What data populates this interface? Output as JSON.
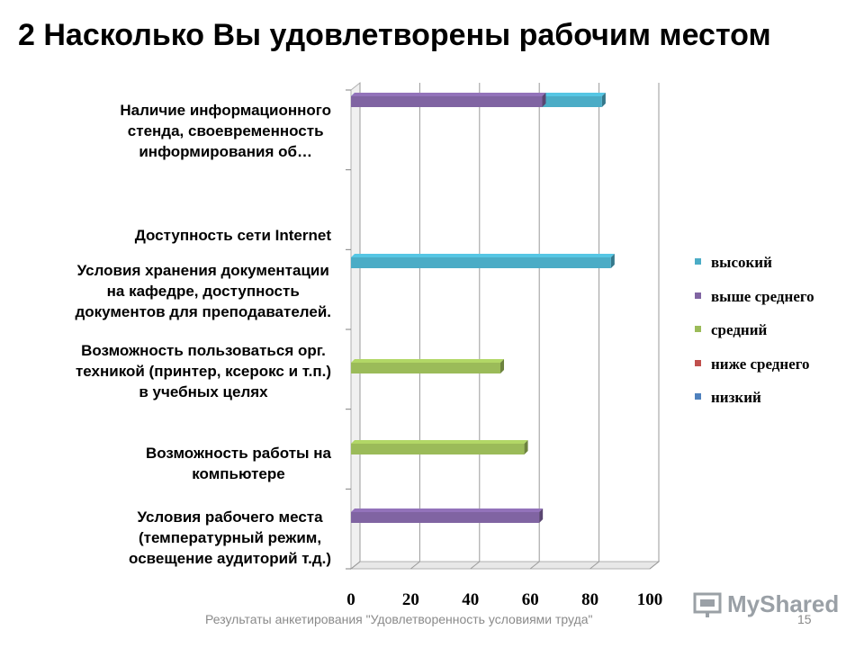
{
  "title": "2 Насколько Вы удовлетворены рабочим местом",
  "footer": "Результаты анкетирования \"Удовлетворенность условиями труда\"",
  "page_number": "15",
  "logo_text": "MyShared",
  "chart_data": {
    "type": "bar",
    "orientation": "horizontal",
    "title": "2 Насколько Вы удовлетворены рабочим местом",
    "xlim": [
      0,
      100
    ],
    "x_ticks": [
      "0",
      "20",
      "40",
      "60",
      "80",
      "100"
    ],
    "grid": true,
    "legend_position": "right",
    "categories": [
      "Наличие информационного стенда, своевременность информирования об…",
      "Доступность сети Internet",
      "Условия хранения документации на кафедре, доступность документов для преподавателей.",
      "Возможность пользоваться орг. техникой (принтер, ксерокс и т.п.) в учебных целях",
      "Возможность работы на компьютере",
      "Условия рабочего места (температурный режим, освещение аудиторий т.д.)"
    ],
    "category_label_lines": [
      [
        "Наличие информационного",
        "стенда, своевременность",
        "информирования об…"
      ],
      [
        "Доступность сети Internet"
      ],
      [
        "Условия хранения документации",
        "на кафедре, доступность",
        "документов для преподавателей."
      ],
      [
        "Возможность пользоваться орг.",
        "техникой (принтер, ксерокс и т.п.)",
        "в учебных целях"
      ],
      [
        "Возможность работы на",
        "компьютере"
      ],
      [
        "Условия рабочего места",
        "(температурный режим,",
        "освещение аудиторий т.д.)"
      ]
    ],
    "bars": [
      {
        "category_index": 0,
        "series": "высокий",
        "value": 84
      },
      {
        "category_index": 0,
        "series": "выше среднего",
        "value": 64
      },
      {
        "category_index": 2,
        "series": "высокий",
        "value": 87
      },
      {
        "category_index": 3,
        "series": "средний",
        "value": 50
      },
      {
        "category_index": 4,
        "series": "средний",
        "value": 58
      },
      {
        "category_index": 5,
        "series": "выше среднего",
        "value": 63
      }
    ],
    "series": [
      {
        "name": "высокий",
        "color": "#4bacc6"
      },
      {
        "name": "выше среднего",
        "color": "#8064a2"
      },
      {
        "name": "средний",
        "color": "#9bbb59"
      },
      {
        "name": "ниже среднего",
        "color": "#c0504d"
      },
      {
        "name": "низкий",
        "color": "#4f81bd"
      }
    ]
  }
}
